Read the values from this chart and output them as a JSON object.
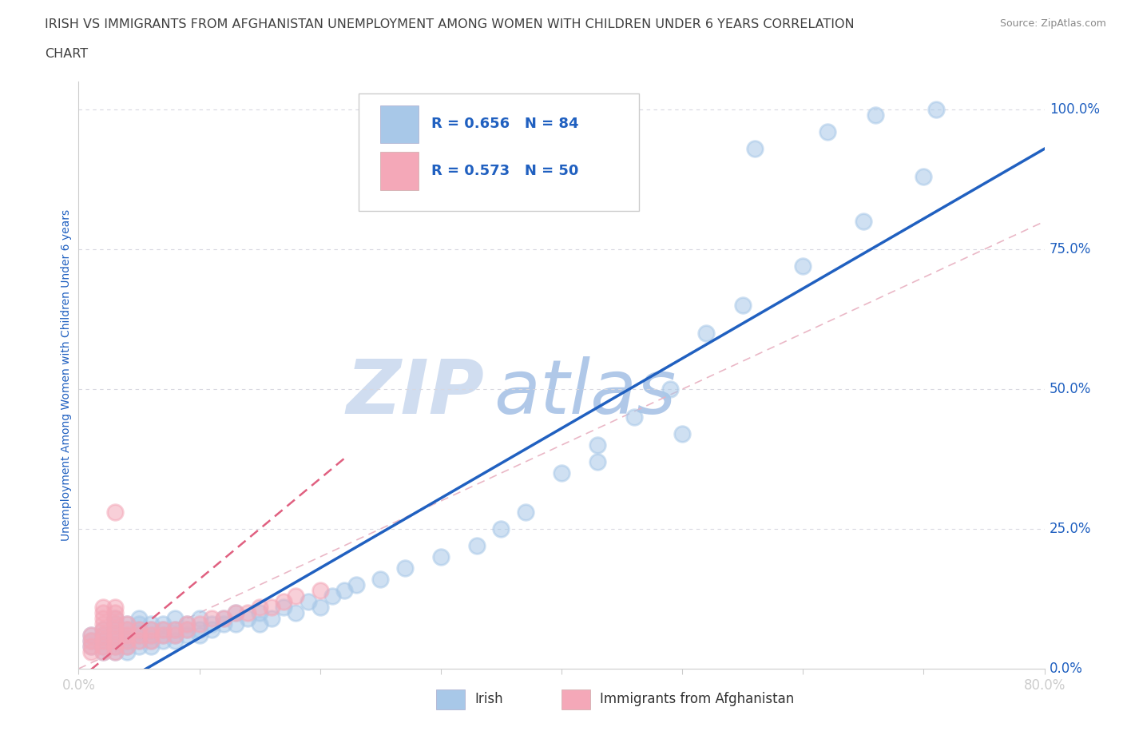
{
  "title_line1": "IRISH VS IMMIGRANTS FROM AFGHANISTAN UNEMPLOYMENT AMONG WOMEN WITH CHILDREN UNDER 6 YEARS CORRELATION",
  "title_line2": "CHART",
  "source": "Source: ZipAtlas.com",
  "ylabel": "Unemployment Among Women with Children Under 6 years",
  "xlim": [
    0,
    0.8
  ],
  "ylim": [
    0,
    1.05
  ],
  "ytick_labels": [
    "0.0%",
    "25.0%",
    "50.0%",
    "75.0%",
    "100.0%"
  ],
  "yticks": [
    0.0,
    0.25,
    0.5,
    0.75,
    1.0
  ],
  "irish_color": "#a8c8e8",
  "afghan_color": "#f4a8b8",
  "irish_trend_color": "#2060c0",
  "afghan_trend_color": "#e06080",
  "ref_line_color": "#c8c8d8",
  "irish_R": 0.656,
  "irish_N": 84,
  "afghan_R": 0.573,
  "afghan_N": 50,
  "irish_x": [
    0.01,
    0.01,
    0.01,
    0.02,
    0.02,
    0.02,
    0.02,
    0.02,
    0.03,
    0.03,
    0.03,
    0.03,
    0.03,
    0.03,
    0.03,
    0.04,
    0.04,
    0.04,
    0.04,
    0.04,
    0.04,
    0.05,
    0.05,
    0.05,
    0.05,
    0.05,
    0.05,
    0.06,
    0.06,
    0.06,
    0.06,
    0.06,
    0.07,
    0.07,
    0.07,
    0.07,
    0.08,
    0.08,
    0.08,
    0.08,
    0.09,
    0.09,
    0.09,
    0.1,
    0.1,
    0.1,
    0.11,
    0.11,
    0.12,
    0.12,
    0.13,
    0.13,
    0.14,
    0.15,
    0.15,
    0.16,
    0.17,
    0.18,
    0.19,
    0.2,
    0.21,
    0.22,
    0.23,
    0.25,
    0.27,
    0.3,
    0.33,
    0.35,
    0.37,
    0.4,
    0.43,
    0.46,
    0.49,
    0.52,
    0.55,
    0.6,
    0.65,
    0.7,
    0.43,
    0.5,
    0.56,
    0.62,
    0.66,
    0.71
  ],
  "irish_y": [
    0.04,
    0.05,
    0.06,
    0.03,
    0.04,
    0.05,
    0.06,
    0.07,
    0.03,
    0.04,
    0.05,
    0.06,
    0.07,
    0.08,
    0.09,
    0.03,
    0.04,
    0.05,
    0.06,
    0.07,
    0.08,
    0.04,
    0.05,
    0.06,
    0.07,
    0.08,
    0.09,
    0.04,
    0.05,
    0.06,
    0.07,
    0.08,
    0.05,
    0.06,
    0.07,
    0.08,
    0.05,
    0.06,
    0.07,
    0.09,
    0.06,
    0.07,
    0.08,
    0.06,
    0.07,
    0.09,
    0.07,
    0.08,
    0.08,
    0.09,
    0.08,
    0.1,
    0.09,
    0.08,
    0.1,
    0.09,
    0.11,
    0.1,
    0.12,
    0.11,
    0.13,
    0.14,
    0.15,
    0.16,
    0.18,
    0.2,
    0.22,
    0.25,
    0.28,
    0.35,
    0.4,
    0.45,
    0.5,
    0.6,
    0.65,
    0.72,
    0.8,
    0.88,
    0.37,
    0.42,
    0.93,
    0.96,
    0.99,
    1.0
  ],
  "afghan_x": [
    0.01,
    0.01,
    0.01,
    0.01,
    0.02,
    0.02,
    0.02,
    0.02,
    0.02,
    0.02,
    0.02,
    0.02,
    0.02,
    0.03,
    0.03,
    0.03,
    0.03,
    0.03,
    0.03,
    0.03,
    0.03,
    0.03,
    0.04,
    0.04,
    0.04,
    0.04,
    0.04,
    0.05,
    0.05,
    0.05,
    0.06,
    0.06,
    0.06,
    0.07,
    0.07,
    0.08,
    0.08,
    0.09,
    0.09,
    0.1,
    0.11,
    0.12,
    0.13,
    0.14,
    0.15,
    0.16,
    0.17,
    0.18,
    0.2,
    0.03
  ],
  "afghan_y": [
    0.03,
    0.04,
    0.05,
    0.06,
    0.03,
    0.04,
    0.05,
    0.06,
    0.07,
    0.08,
    0.09,
    0.1,
    0.11,
    0.03,
    0.04,
    0.05,
    0.06,
    0.07,
    0.08,
    0.09,
    0.1,
    0.11,
    0.04,
    0.05,
    0.06,
    0.07,
    0.08,
    0.05,
    0.06,
    0.07,
    0.05,
    0.06,
    0.07,
    0.06,
    0.07,
    0.06,
    0.07,
    0.07,
    0.08,
    0.08,
    0.09,
    0.09,
    0.1,
    0.1,
    0.11,
    0.11,
    0.12,
    0.13,
    0.14,
    0.28
  ],
  "background_color": "#ffffff",
  "grid_color": "#d8d8e0",
  "watermark_zip": "ZIP",
  "watermark_atlas": "atlas",
  "watermark_color_zip": "#d0ddf0",
  "watermark_color_atlas": "#b0c8e8",
  "stat_text_color": "#2060c0",
  "title_color": "#404040",
  "axis_label_color": "#2060c0",
  "tick_color": "#2060c0",
  "source_color": "#888888"
}
